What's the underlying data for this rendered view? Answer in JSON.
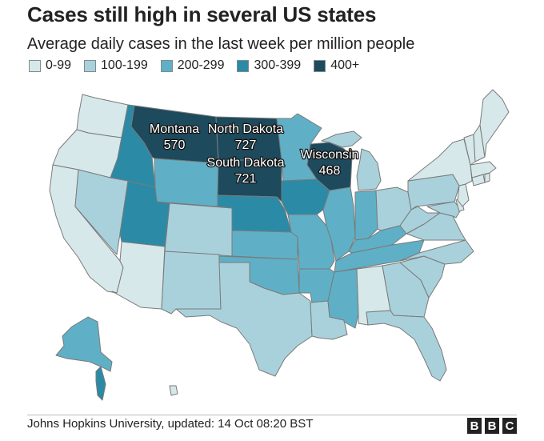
{
  "title": "Cases still high in several US states",
  "subtitle": "Average daily cases in the last week per million people",
  "legend": [
    {
      "label": "0-99",
      "color": "#d6e8ea"
    },
    {
      "label": "100-199",
      "color": "#a9d1dc"
    },
    {
      "label": "200-299",
      "color": "#5fb0c6"
    },
    {
      "label": "300-399",
      "color": "#2b8aa6"
    },
    {
      "label": "400+",
      "color": "#1d4a5c"
    }
  ],
  "callouts": [
    {
      "state": "Montana",
      "value": "570"
    },
    {
      "state": "North Dakota",
      "value": "727"
    },
    {
      "state": "South Dakota",
      "value": "721"
    },
    {
      "state": "Wisconsin",
      "value": "468"
    }
  ],
  "source": "Johns Hopkins University, updated: 14 Oct 08:20 BST",
  "logo": [
    "B",
    "B",
    "C"
  ]
}
